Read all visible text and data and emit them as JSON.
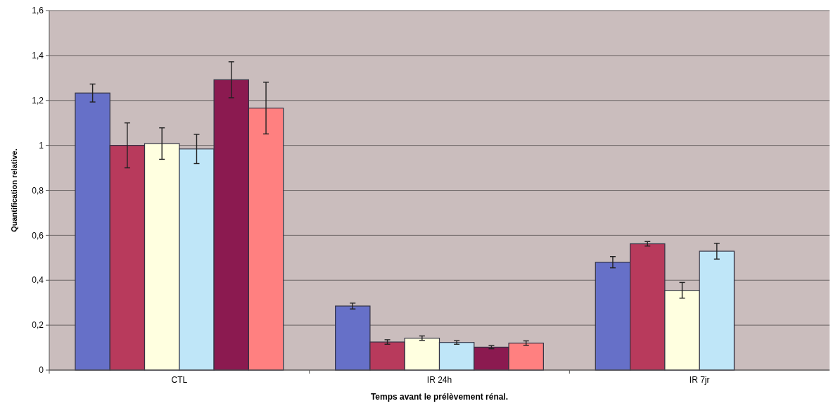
{
  "chart_data": {
    "type": "bar",
    "xlabel": "Temps avant le prélèvement rénal.",
    "ylabel": "Quantification relative.",
    "categories": [
      "CTL",
      "IR 24h",
      "IR 7jr"
    ],
    "series": [
      {
        "color": "#6670c8",
        "values": [
          1.233,
          0.285,
          0.48
        ],
        "errors": [
          0.04,
          0.013,
          0.025
        ]
      },
      {
        "color": "#b83a5c",
        "values": [
          1.0,
          0.125,
          0.562
        ],
        "errors": [
          0.1,
          0.01,
          0.01
        ]
      },
      {
        "color": "#ffffe0",
        "values": [
          1.008,
          0.142,
          0.355
        ],
        "errors": [
          0.07,
          0.01,
          0.035
        ]
      },
      {
        "color": "#bfe6f8",
        "values": [
          0.984,
          0.123,
          0.529
        ],
        "errors": [
          0.065,
          0.008,
          0.035
        ]
      },
      {
        "color": "#8b1a50",
        "values": [
          1.292,
          0.102,
          null
        ],
        "errors": [
          0.08,
          0.007,
          null
        ]
      },
      {
        "color": "#ff8080",
        "values": [
          1.166,
          0.12,
          null
        ],
        "errors": [
          0.115,
          0.01,
          null
        ]
      }
    ],
    "ylim": [
      0,
      1.6
    ],
    "yticks": [
      0,
      {
        "value": 0.2,
        "label": "0,2"
      },
      {
        "value": 0.4,
        "label": "0,4"
      },
      {
        "value": 0.6,
        "label": "0,6"
      },
      {
        "value": 0.8,
        "label": "0,8"
      },
      1,
      {
        "value": 1.2,
        "label": "1,2"
      },
      {
        "value": 1.4,
        "label": "1,4"
      },
      {
        "value": 1.6,
        "label": "1,6"
      }
    ],
    "grid": "y"
  }
}
